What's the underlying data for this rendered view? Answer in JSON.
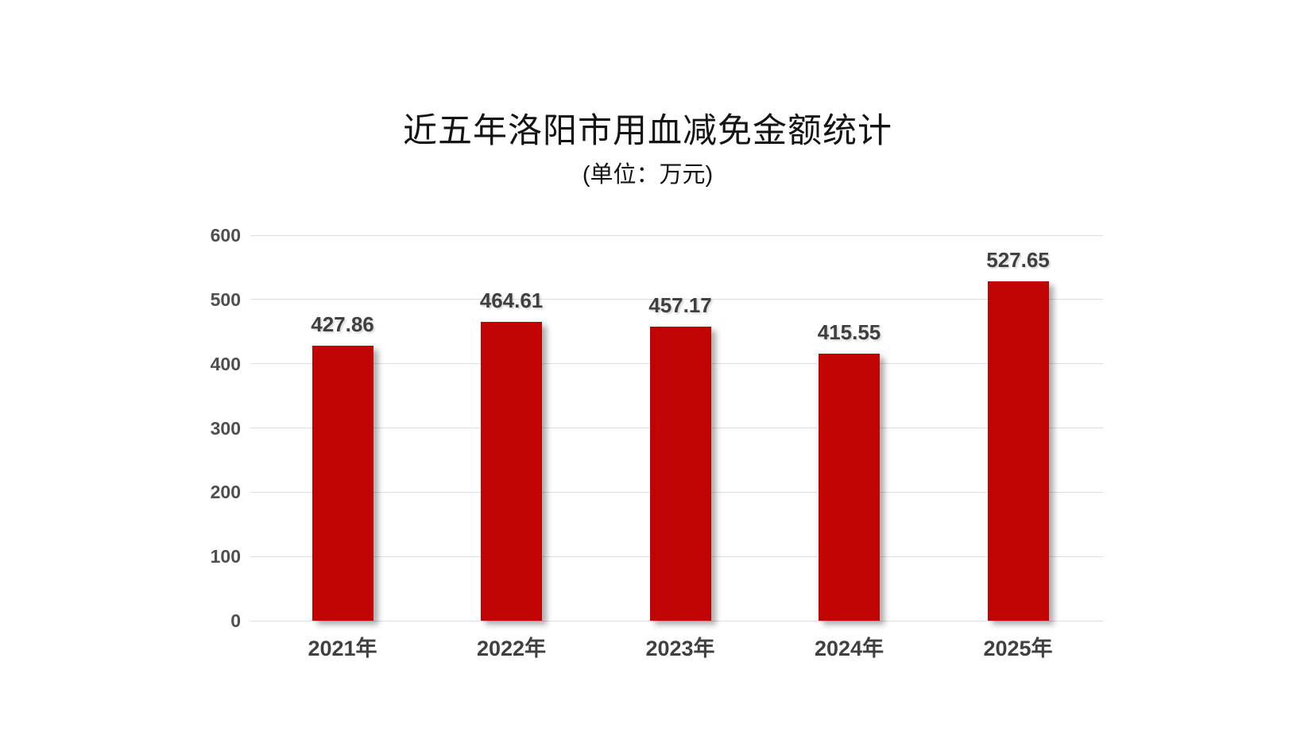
{
  "chart_data": {
    "type": "bar",
    "title": "近五年洛阳市用血减免金额统计",
    "subtitle": "(单位：万元)",
    "categories": [
      "2021年",
      "2022年",
      "2023年",
      "2024年",
      "2025年"
    ],
    "values": [
      427.86,
      464.61,
      457.17,
      415.55,
      527.65
    ],
    "value_labels": [
      "427.86",
      "464.61",
      "457.17",
      "415.55",
      "527.65"
    ],
    "xlabel": "",
    "ylabel": "",
    "ylim": [
      0,
      600
    ],
    "ytick_step": 100,
    "ytick_labels": [
      "0",
      "100",
      "200",
      "300",
      "400",
      "500",
      "600"
    ],
    "grid": true,
    "legend": "none",
    "bar_color": "#c00404",
    "value_label_color": "#3f3f3f",
    "axis_label_color": "#4f4f4f",
    "gridline_color": "#dedede",
    "background_color": "#ffffff"
  }
}
